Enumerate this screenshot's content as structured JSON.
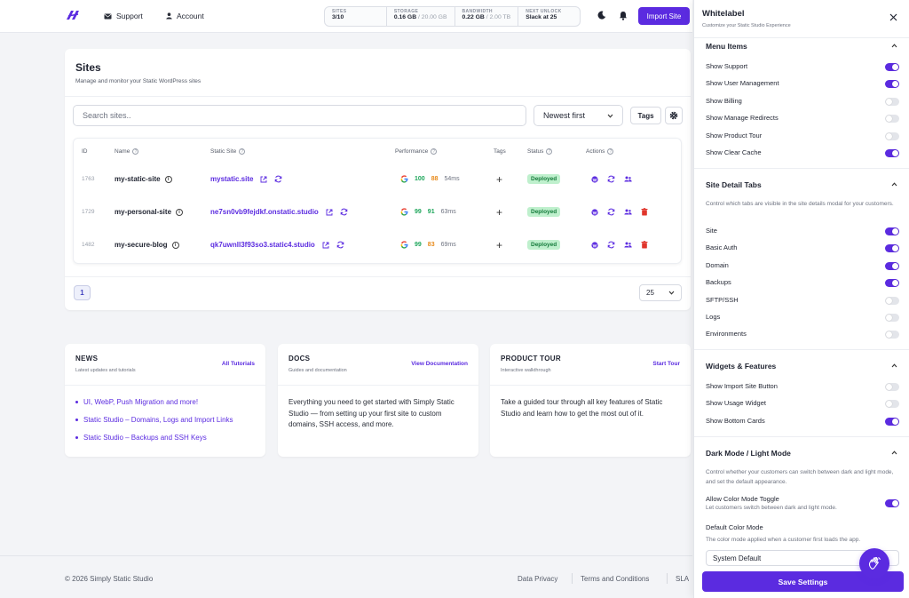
{
  "nav": {
    "support": "Support",
    "account": "Account",
    "import_label": "Import Site"
  },
  "stats": [
    {
      "label": "SITES",
      "value": "3/10",
      "suffix": ""
    },
    {
      "label": "STORAGE",
      "value": "0.16 GB",
      "suffix": " / 20.00 GB"
    },
    {
      "label": "BANDWIDTH",
      "value": "0.22 GB",
      "suffix": " / 2.00 TB"
    },
    {
      "label": "NEXT UNLOCK",
      "value": "Slack at 25",
      "suffix": ""
    }
  ],
  "sites": {
    "title": "Sites",
    "subtitle": "Manage and monitor your Static WordPress sites",
    "search_placeholder": "Search sites..",
    "sort": "Newest first",
    "tags_button": "Tags",
    "columns": {
      "id": "ID",
      "name": "Name",
      "static_site": "Static Site",
      "performance": "Performance",
      "tags": "Tags",
      "status": "Status",
      "actions": "Actions"
    },
    "rows": [
      {
        "id": "1763",
        "name": "my-static-site",
        "domain": "mystatic.site",
        "perf_a": "100",
        "perf_b": "88",
        "perf_ms": "54ms",
        "status": "Deployed"
      },
      {
        "id": "1729",
        "name": "my-personal-site",
        "domain": "ne7sn0vb9fejdkf.onstatic.studio",
        "perf_a": "99",
        "perf_b": "91",
        "perf_ms": "63ms",
        "status": "Deployed"
      },
      {
        "id": "1482",
        "name": "my-secure-blog",
        "domain": "qk7uwnll3f93so3.static4.studio",
        "perf_a": "99",
        "perf_b": "83",
        "perf_ms": "69ms",
        "status": "Deployed"
      }
    ],
    "page": "1",
    "per_page": "25"
  },
  "news": {
    "title": "NEWS",
    "subtitle": "Latest updates and tutorials",
    "link": "All Tutorials",
    "items": [
      "UI, WebP, Push Migration and more!",
      "Static Studio – Domains, Logs and Import Links",
      "Static Studio – Backups and SSH Keys"
    ]
  },
  "docs": {
    "title": "DOCS",
    "subtitle": "Guides and documentation",
    "link": "View Documentation",
    "text": "Everything you need to get started with Simply Static Studio — from setting up your first site to custom domains, SSH access, and more."
  },
  "tour": {
    "title": "PRODUCT TOUR",
    "subtitle": "Interactive walkthrough",
    "link": "Start Tour",
    "text": "Take a guided tour through all key features of Static Studio and learn how to get the most out of it."
  },
  "footer": {
    "copyright": "© 2026 Simply Static Studio",
    "privacy": "Data Privacy",
    "terms": "Terms and Conditions",
    "sla": "SLA"
  },
  "panel": {
    "title": "Whitelabel",
    "subtitle": "Customize your Static Studio Experience",
    "menu_items": {
      "title": "Menu Items",
      "options": [
        {
          "label": "Show Support",
          "on": true
        },
        {
          "label": "Show User Management",
          "on": true
        },
        {
          "label": "Show Billing",
          "on": false
        },
        {
          "label": "Show Manage Redirects",
          "on": false
        },
        {
          "label": "Show Product Tour",
          "on": false
        },
        {
          "label": "Show Clear Cache",
          "on": true
        }
      ]
    },
    "site_tabs": {
      "title": "Site Detail Tabs",
      "desc": "Control which tabs are visible in the site details modal for your customers.",
      "options": [
        {
          "label": "Site",
          "on": true
        },
        {
          "label": "Basic Auth",
          "on": true
        },
        {
          "label": "Domain",
          "on": true
        },
        {
          "label": "Backups",
          "on": true
        },
        {
          "label": "SFTP/SSH",
          "on": false
        },
        {
          "label": "Logs",
          "on": false
        },
        {
          "label": "Environments",
          "on": false
        }
      ]
    },
    "widgets": {
      "title": "Widgets & Features",
      "options": [
        {
          "label": "Show Import Site Button",
          "on": false
        },
        {
          "label": "Show Usage Widget",
          "on": false
        },
        {
          "label": "Show Bottom Cards",
          "on": true
        }
      ]
    },
    "dark_mode": {
      "title": "Dark Mode / Light Mode",
      "desc": "Control whether your customers can switch between dark and light mode, and set the default appearance.",
      "toggle_label": "Allow Color Mode Toggle",
      "toggle_sub": "Let customers switch between dark and light mode.",
      "toggle_on": true,
      "default_label": "Default Color Mode",
      "default_desc": "The color mode applied when a customer first loads the app.",
      "default_value": "System Default"
    },
    "save": "Save Settings"
  },
  "colors": {
    "accent": "#5b2be0",
    "success_bg": "#bff0cd",
    "success_text": "#137a3a",
    "danger": "#e0352b"
  }
}
